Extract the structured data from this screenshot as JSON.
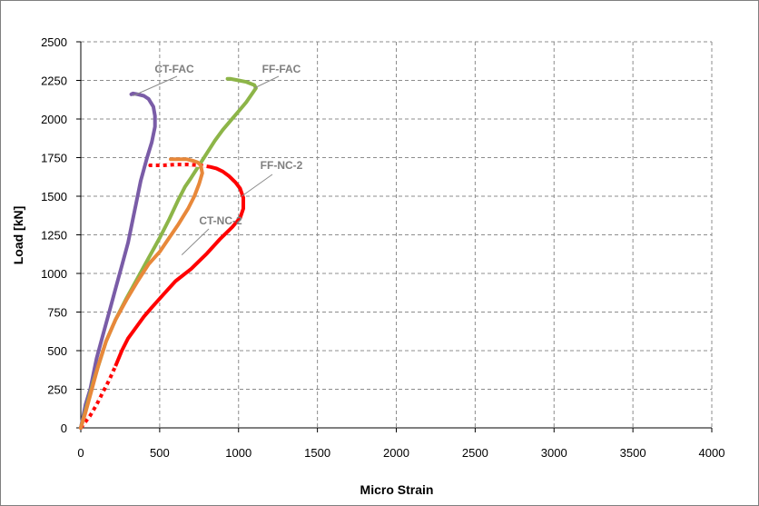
{
  "chart_data": {
    "type": "line",
    "title": "",
    "xlabel": "Micro Strain",
    "ylabel": "Load [kN]",
    "xlim": [
      0,
      4000
    ],
    "ylim": [
      0,
      2500
    ],
    "xticks": [
      "0",
      "500",
      "1000",
      "1500",
      "2000",
      "2500",
      "3000",
      "3500",
      "4000"
    ],
    "yticks": [
      "0",
      "250",
      "500",
      "750",
      "1000",
      "1250",
      "1500",
      "1750",
      "2000",
      "2250",
      "2500"
    ],
    "grid": true,
    "legend": "none",
    "series": [
      {
        "name": "CT-FAC",
        "color": "#7a5ca7",
        "dashed": false,
        "x": [
          0,
          30,
          60,
          80,
          100,
          140,
          180,
          220,
          260,
          300,
          330,
          350,
          380,
          420,
          450,
          470,
          470,
          460,
          430,
          400,
          360,
          330,
          320
        ],
        "y": [
          0,
          150,
          250,
          350,
          450,
          600,
          750,
          900,
          1050,
          1200,
          1350,
          1450,
          1600,
          1750,
          1850,
          1950,
          2020,
          2080,
          2130,
          2150,
          2160,
          2165,
          2160
        ]
      },
      {
        "name": "FF-FAC",
        "color": "#8db548",
        "dashed": false,
        "x": [
          0,
          40,
          80,
          120,
          160,
          220,
          290,
          360,
          430,
          500,
          560,
          620,
          660,
          700,
          750,
          800,
          850,
          900,
          950,
          1000,
          1050,
          1090,
          1110,
          1100,
          1050,
          1000,
          950,
          930
        ],
        "y": [
          0,
          150,
          300,
          430,
          560,
          700,
          840,
          970,
          1100,
          1230,
          1350,
          1480,
          1560,
          1620,
          1700,
          1780,
          1860,
          1930,
          1990,
          2050,
          2110,
          2170,
          2200,
          2220,
          2240,
          2250,
          2260,
          2260
        ]
      },
      {
        "name": "FF-NC-2",
        "color": "#ff0000",
        "dashed": true,
        "x": [
          0,
          30,
          60,
          100,
          140,
          180,
          220,
          260,
          300,
          350,
          400,
          450,
          520,
          600,
          700,
          800,
          880,
          960,
          1010,
          1030,
          1030,
          1010,
          980,
          940,
          900,
          860,
          820,
          760,
          680,
          600,
          520,
          440
        ],
        "y": [
          0,
          40,
          80,
          150,
          230,
          310,
          400,
          500,
          580,
          650,
          720,
          780,
          860,
          950,
          1030,
          1130,
          1220,
          1300,
          1360,
          1420,
          1490,
          1550,
          1590,
          1630,
          1660,
          1680,
          1690,
          1700,
          1705,
          1705,
          1700,
          1700
        ]
      },
      {
        "name": "CT-NC-2",
        "color": "#e8883a",
        "dashed": false,
        "x": [
          0,
          30,
          70,
          110,
          160,
          220,
          290,
          360,
          430,
          500,
          560,
          620,
          680,
          720,
          750,
          770,
          760,
          740,
          710,
          670,
          620,
          570
        ],
        "y": [
          0,
          100,
          250,
          400,
          560,
          700,
          830,
          950,
          1060,
          1140,
          1230,
          1320,
          1420,
          1500,
          1580,
          1650,
          1700,
          1720,
          1730,
          1740,
          1740,
          1740
        ]
      }
    ],
    "annotations": [
      {
        "text": "CT-FAC",
        "series": "CT-FAC"
      },
      {
        "text": "FF-FAC",
        "series": "FF-FAC"
      },
      {
        "text": "FF-NC-2",
        "series": "FF-NC-2"
      },
      {
        "text": "CT-NC-2",
        "series": "CT-NC-2"
      }
    ]
  }
}
